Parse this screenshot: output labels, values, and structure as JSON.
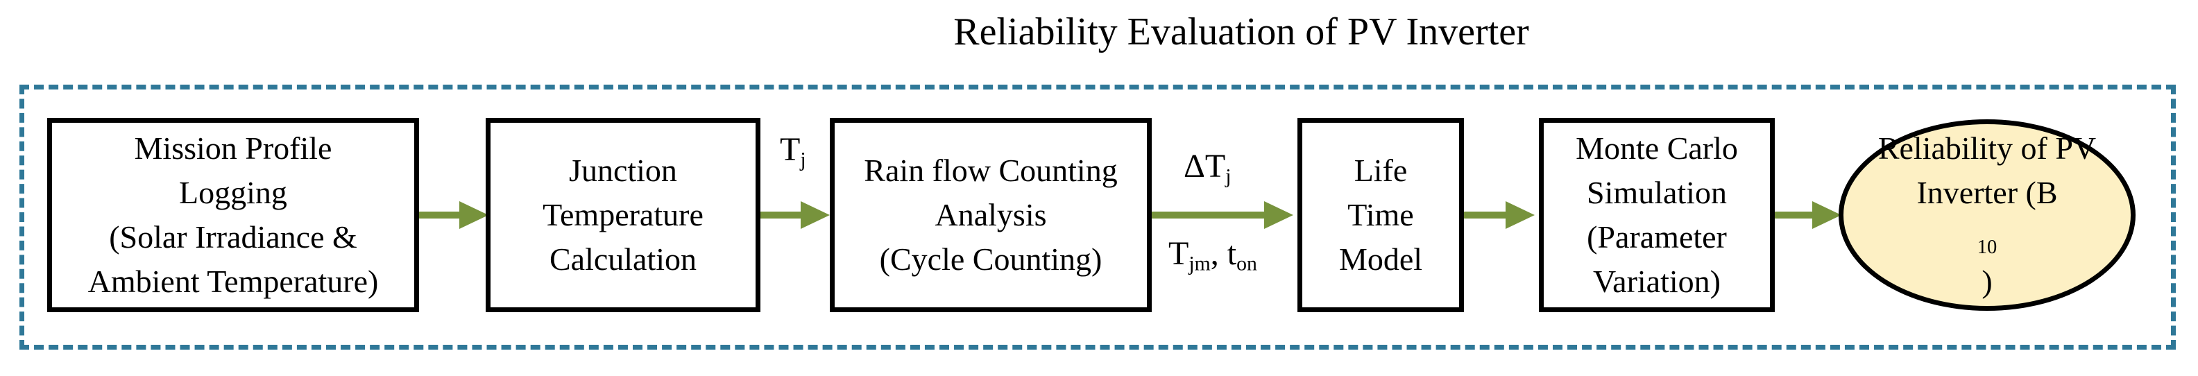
{
  "title": "Reliability Evaluation of PV Inverter",
  "blocks": {
    "mission_profile": [
      "Mission Profile",
      "Logging",
      "(Solar Irradiance &",
      "Ambient Temperature)"
    ],
    "junction_temp": [
      "Junction",
      "Temperature",
      "Calculation"
    ],
    "rainflow": [
      "Rain flow Counting",
      "Analysis",
      "(Cycle Counting)"
    ],
    "lifetime": [
      "Life",
      "Time",
      "Model"
    ],
    "monte_carlo": [
      "Monte Carlo",
      "Simulation",
      "(Parameter",
      "Variation)"
    ],
    "reliability": {
      "line1": "Reliability of PV",
      "line2_main": "Inverter (B",
      "line2_sub": "10",
      "line2_end": ")"
    }
  },
  "labels": {
    "tj": {
      "main": "T",
      "sub": "j"
    },
    "delta_tj": {
      "main": "ΔT",
      "sub": "j"
    },
    "tjm_ton": {
      "part1": "T",
      "sub1": "jm",
      "sep": ", t",
      "sub2": "on"
    }
  },
  "colors": {
    "frame": "#2f7898",
    "arrow": "#77933c",
    "ellipse_fill": "#fdf0c4",
    "box_border": "#000000"
  }
}
